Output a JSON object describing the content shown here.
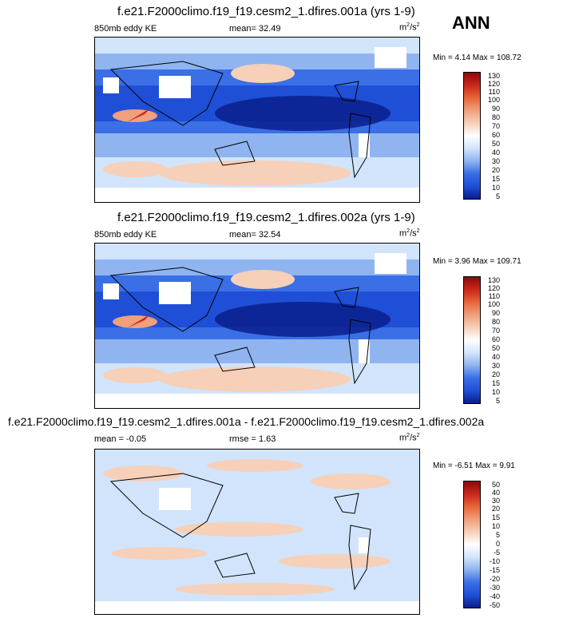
{
  "season": "ANN",
  "colors": {
    "dark_blue": "#0a1e8c",
    "blue": "#1f4fd6",
    "mid_blue": "#3a6fe6",
    "light_blue": "#8fb4f0",
    "pale_blue": "#d2e4fb",
    "white": "#ffffff",
    "peach": "#f6d0b8",
    "salmon": "#f0a07c",
    "orange": "#e8663a",
    "red": "#c8281c",
    "dark_red": "#8c0a0a"
  },
  "panels": [
    {
      "title": "f.e21.F2000climo.f19_f19.cesm2_1.dfires.001a (yrs 1-9)",
      "left_label": "850mb eddy KE",
      "stat": "mean=  32.49",
      "units": "m",
      "units_sup1": "2",
      "units_mid": "/s",
      "units_sup2": "2",
      "minmax": "Min =   4.14 Max = 108.72",
      "levels": [
        "130",
        "120",
        "110",
        "100",
        "90",
        "80",
        "70",
        "60",
        "50",
        "40",
        "30",
        "20",
        "15",
        "10",
        "5"
      ]
    },
    {
      "title": "f.e21.F2000climo.f19_f19.cesm2_1.dfires.002a (yrs 1-9)",
      "left_label": "850mb eddy KE",
      "stat": "mean=  32.54",
      "units": "m",
      "units_sup1": "2",
      "units_mid": "/s",
      "units_sup2": "2",
      "minmax": "Min =   3.96 Max = 109.71",
      "levels": [
        "130",
        "120",
        "110",
        "100",
        "90",
        "80",
        "70",
        "60",
        "50",
        "40",
        "30",
        "20",
        "15",
        "10",
        "5"
      ]
    },
    {
      "title": "f.e21.F2000climo.f19_f19.cesm2_1.dfires.001a - f.e21.F2000climo.f19_f19.cesm2_1.dfires.002a",
      "left_label": "mean =  -0.05",
      "stat": "rmse =   1.63",
      "units": "m",
      "units_sup1": "2",
      "units_mid": "/s",
      "units_sup2": "2",
      "minmax": "Min =  -6.51 Max =   9.91",
      "levels": [
        "50",
        "40",
        "30",
        "20",
        "15",
        "10",
        "5",
        "0",
        "-5",
        "-10",
        "-15",
        "-20",
        "-30",
        "-40",
        "-50"
      ]
    }
  ],
  "chart_data": [
    {
      "type": "heatmap",
      "title": "f.e21.F2000climo.f19_f19.cesm2_1.dfires.001a (yrs 1-9)",
      "variable": "850mb eddy KE",
      "mean": 32.49,
      "min": 4.14,
      "max": 108.72,
      "units": "m2/s2",
      "contour_levels": [
        5,
        10,
        15,
        20,
        30,
        40,
        50,
        60,
        70,
        80,
        90,
        100,
        110,
        120,
        130
      ]
    },
    {
      "type": "heatmap",
      "title": "f.e21.F2000climo.f19_f19.cesm2_1.dfires.002a (yrs 1-9)",
      "variable": "850mb eddy KE",
      "mean": 32.54,
      "min": 3.96,
      "max": 109.71,
      "units": "m2/s2",
      "contour_levels": [
        5,
        10,
        15,
        20,
        30,
        40,
        50,
        60,
        70,
        80,
        90,
        100,
        110,
        120,
        130
      ]
    },
    {
      "type": "heatmap",
      "title": "f.e21.F2000climo.f19_f19.cesm2_1.dfires.001a - f.e21.F2000climo.f19_f19.cesm2_1.dfires.002a",
      "mean": -0.05,
      "rmse": 1.63,
      "min": -6.51,
      "max": 9.91,
      "units": "m2/s2",
      "contour_levels": [
        -50,
        -40,
        -30,
        -20,
        -15,
        -10,
        -5,
        0,
        5,
        10,
        15,
        20,
        30,
        40,
        50
      ]
    }
  ]
}
